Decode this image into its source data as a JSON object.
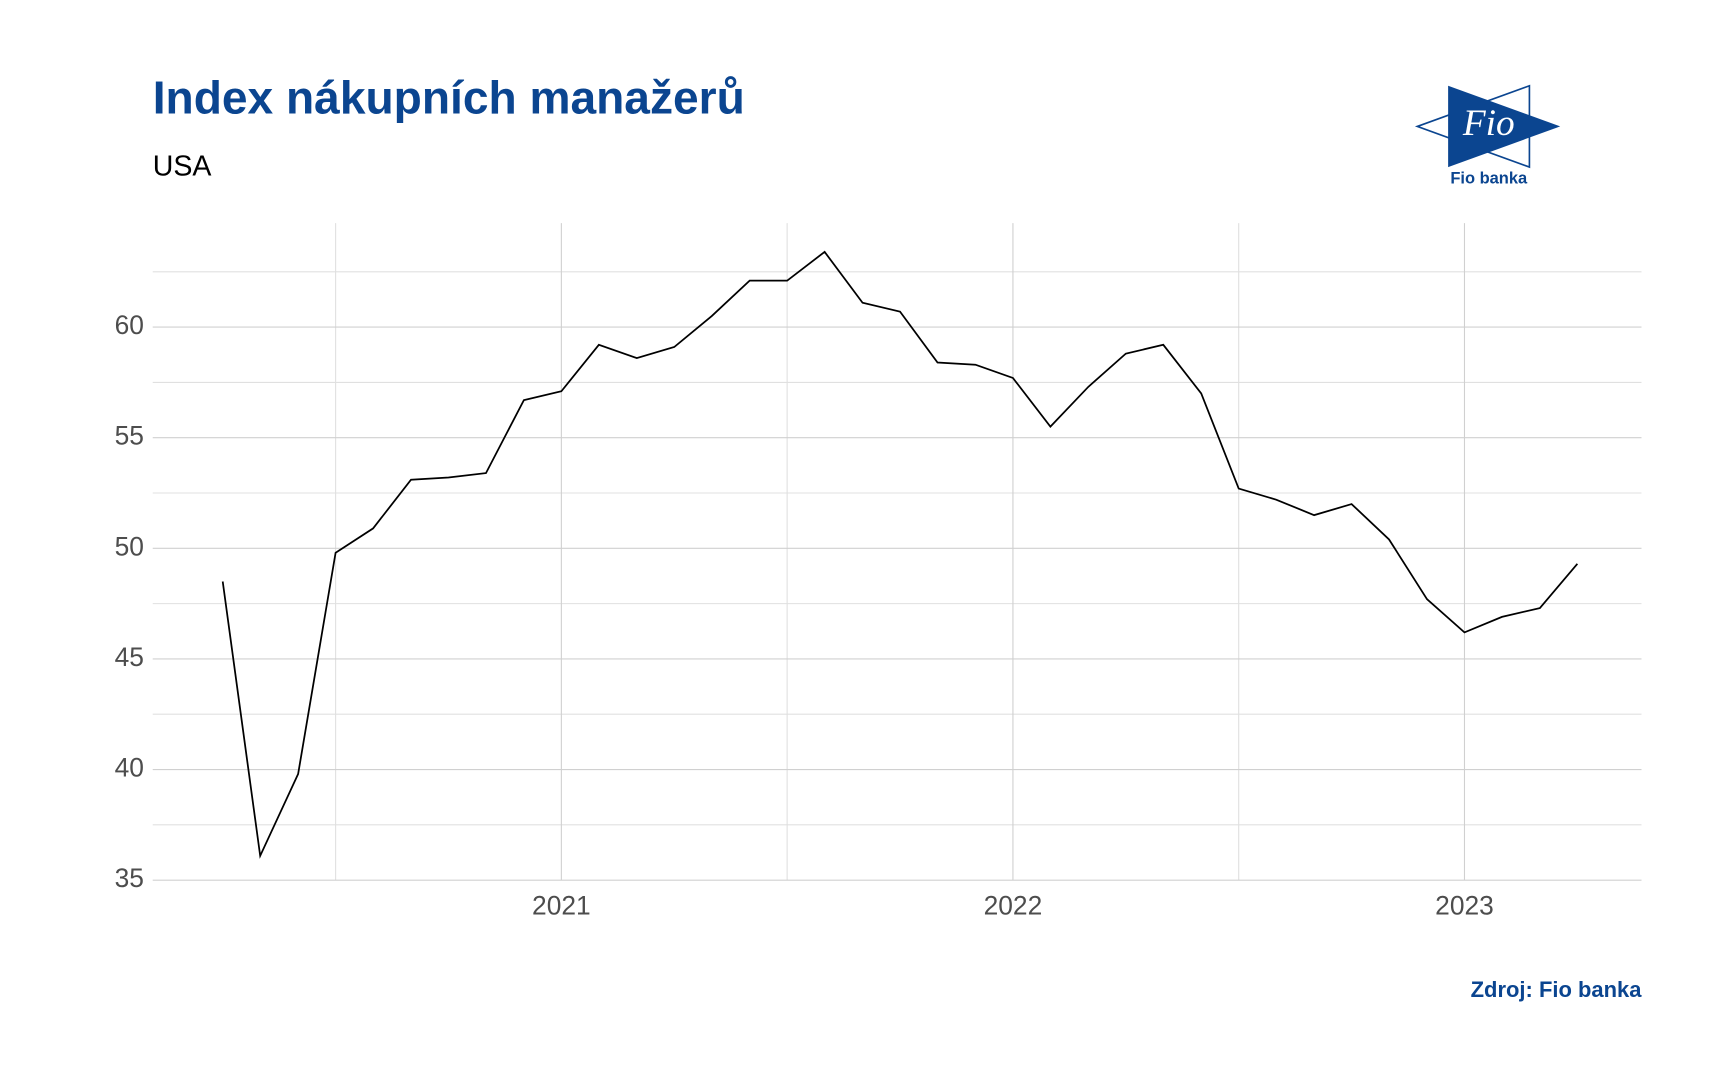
{
  "chart_data": {
    "type": "line",
    "title": "Index nákupních manažerů",
    "subtitle": "USA",
    "source": "Zdroj: Fio banka",
    "logo_text": "Fio",
    "logo_caption": "Fio banka",
    "x": [
      2020.25,
      2020.333,
      2020.417,
      2020.5,
      2020.583,
      2020.667,
      2020.75,
      2020.833,
      2020.917,
      2021,
      2021.083,
      2021.167,
      2021.25,
      2021.333,
      2021.417,
      2021.5,
      2021.583,
      2021.667,
      2021.75,
      2021.833,
      2021.917,
      2022,
      2022.083,
      2022.167,
      2022.25,
      2022.333,
      2022.417,
      2022.5,
      2022.583,
      2022.667,
      2022.75,
      2022.833,
      2022.917,
      2023,
      2023.083,
      2023.167,
      2023.25
    ],
    "series": [
      {
        "name": "USA",
        "color": "#000000",
        "values": [
          48.5,
          36.1,
          39.8,
          49.8,
          50.9,
          53.1,
          53.2,
          53.4,
          56.7,
          57.1,
          59.2,
          58.6,
          59.1,
          60.5,
          62.1,
          62.1,
          63.4,
          61.1,
          60.7,
          58.4,
          58.3,
          57.7,
          55.5,
          57.3,
          58.8,
          59.2,
          57.0,
          52.7,
          52.2,
          51.5,
          52.0,
          50.4,
          47.7,
          46.2,
          46.9,
          47.3,
          49.3
        ]
      }
    ],
    "xlim": [
      2020.095,
      2023.392
    ],
    "xticks": [
      2021,
      2022,
      2023
    ],
    "ylim": [
      35,
      64.7
    ],
    "yticks": [
      35,
      40,
      45,
      50,
      55,
      60
    ],
    "grid": true
  }
}
